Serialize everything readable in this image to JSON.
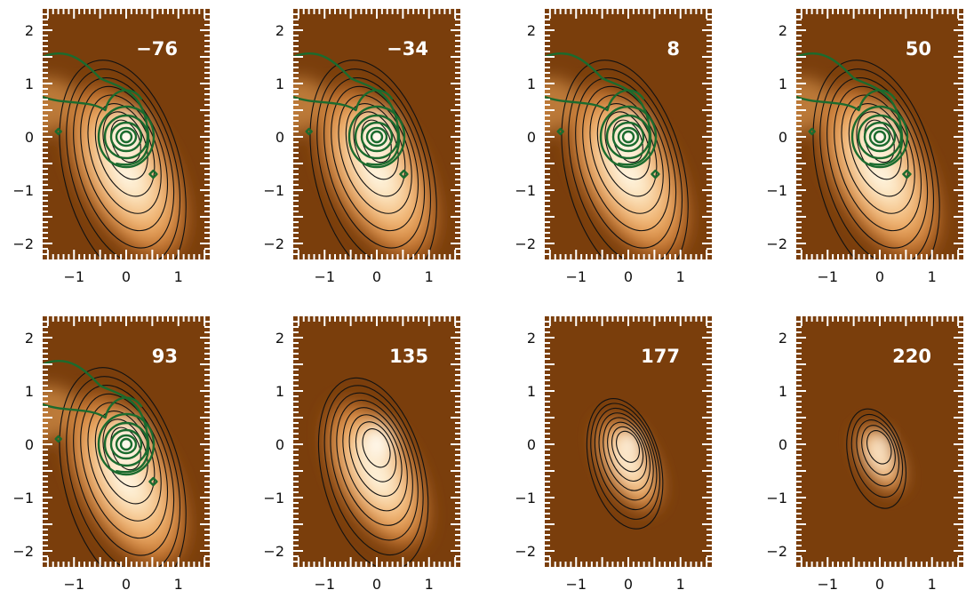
{
  "colors": {
    "background_map": "#7a3e0c",
    "emission_peak": "#fffef7",
    "overlay_contour": "#1b6b2e",
    "map_contour": "#111111",
    "frame_ticks": "#ffffff",
    "tick_text": "#111111"
  },
  "chart_data": [
    {
      "type": "heatmap",
      "title": "-76",
      "has_overlay": true,
      "extent": "large",
      "xlim": [
        -1.6,
        1.6
      ],
      "ylim": [
        -2.3,
        2.4
      ],
      "xticks": [
        "-1",
        "0",
        "1"
      ],
      "yticks": [
        "2",
        "1",
        "0",
        "-1",
        "-2"
      ]
    },
    {
      "type": "heatmap",
      "title": "-34",
      "has_overlay": true,
      "extent": "large",
      "xlim": [
        -1.6,
        1.6
      ],
      "ylim": [
        -2.3,
        2.4
      ],
      "xticks": [
        "-1",
        "0",
        "1"
      ],
      "yticks": [
        "2",
        "1",
        "0",
        "-1",
        "-2"
      ]
    },
    {
      "type": "heatmap",
      "title": "8",
      "has_overlay": true,
      "extent": "large",
      "xlim": [
        -1.6,
        1.6
      ],
      "ylim": [
        -2.3,
        2.4
      ],
      "xticks": [
        "-1",
        "0",
        "1"
      ],
      "yticks": [
        "2",
        "1",
        "0",
        "-1",
        "-2"
      ]
    },
    {
      "type": "heatmap",
      "title": "50",
      "has_overlay": true,
      "extent": "large",
      "xlim": [
        -1.6,
        1.6
      ],
      "ylim": [
        -2.3,
        2.4
      ],
      "xticks": [
        "-1",
        "0",
        "1"
      ],
      "yticks": [
        "2",
        "1",
        "0",
        "-1",
        "-2"
      ]
    },
    {
      "type": "heatmap",
      "title": "93",
      "has_overlay": true,
      "extent": "large",
      "xlim": [
        -1.6,
        1.6
      ],
      "ylim": [
        -2.3,
        2.4
      ],
      "xticks": [
        "-1",
        "0",
        "1"
      ],
      "yticks": [
        "2",
        "1",
        "0",
        "-1",
        "-2"
      ]
    },
    {
      "type": "heatmap",
      "title": "135",
      "has_overlay": false,
      "extent": "medium",
      "xlim": [
        -1.6,
        1.6
      ],
      "ylim": [
        -2.3,
        2.4
      ],
      "xticks": [
        "-1",
        "0",
        "1"
      ],
      "yticks": [
        "2",
        "1",
        "0",
        "-1",
        "-2"
      ]
    },
    {
      "type": "heatmap",
      "title": "177",
      "has_overlay": false,
      "extent": "small",
      "xlim": [
        -1.6,
        1.6
      ],
      "ylim": [
        -2.3,
        2.4
      ],
      "xticks": [
        "-1",
        "0",
        "1"
      ],
      "yticks": [
        "2",
        "1",
        "0",
        "-1",
        "-2"
      ]
    },
    {
      "type": "heatmap",
      "title": "220",
      "has_overlay": false,
      "extent": "tiny",
      "xlim": [
        -1.6,
        1.6
      ],
      "ylim": [
        -2.3,
        2.4
      ],
      "xticks": [
        "-1",
        "0",
        "1"
      ],
      "yticks": [
        "2",
        "1",
        "0",
        "-1",
        "-2"
      ]
    }
  ]
}
